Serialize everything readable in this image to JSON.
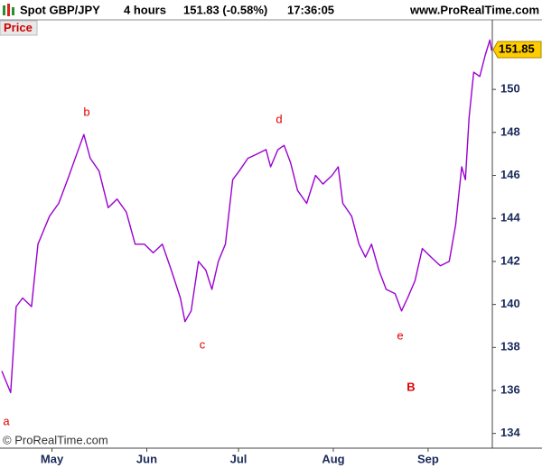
{
  "chart_data": {
    "type": "line",
    "header": {
      "symbol": "Spot GBP/JPY",
      "period": "4 hours",
      "quote": "151.83 (-0.58%)",
      "time": "17:36:05",
      "site": "www.ProRealTime.com"
    },
    "panel_label": "Price",
    "copyright": "© ProRealTime.com",
    "annotations": [
      "a",
      "b",
      "c",
      "d",
      "e",
      "B"
    ],
    "last_price": 151.85,
    "x": [
      0.6,
      3.5,
      5.3,
      7.4,
      10.3,
      12.4,
      16.2,
      19.2,
      22.1,
      25.1,
      27.4,
      29.5,
      32.4,
      35.4,
      38.3,
      41.3,
      44.2,
      47.2,
      50.1,
      53.1,
      56,
      59,
      60.5,
      62.5,
      64.9,
      67.3,
      69.3,
      71.4,
      73.7,
      76.1,
      78.2,
      81.1,
      84.1,
      87,
      88.5,
      90.9,
      92.9,
      95,
      97.3,
      100.3,
      103.2,
      105.6,
      108.6,
      110.6,
      112.1,
      115,
      117.4,
      119.5,
      121.5,
      123.9,
      126.3,
      129.2,
      131.3,
      133.3,
      135.7,
      138.1,
      141,
      144,
      146.9,
      149,
      151,
      152.2,
      153.4,
      154.9,
      156.9,
      158.7,
      160.2,
      160.8
    ],
    "series": [
      {
        "name": "Price",
        "color": "#9a00d0",
        "values": [
          136.9,
          135.9,
          139.9,
          140.3,
          139.9,
          142.8,
          144.1,
          144.7,
          145.8,
          147.0,
          147.9,
          146.8,
          146.2,
          144.5,
          144.9,
          144.3,
          142.8,
          142.8,
          142.4,
          142.8,
          141.6,
          140.3,
          139.2,
          139.7,
          142.0,
          141.6,
          140.7,
          142.0,
          142.8,
          145.8,
          146.2,
          146.8,
          147.0,
          147.2,
          146.4,
          147.2,
          147.4,
          146.6,
          145.3,
          144.7,
          146.0,
          145.6,
          146.0,
          146.4,
          144.7,
          144.1,
          142.8,
          142.2,
          142.8,
          141.6,
          140.7,
          140.5,
          139.7,
          140.3,
          141.1,
          142.6,
          142.2,
          141.8,
          142.0,
          143.7,
          146.4,
          145.8,
          148.7,
          150.8,
          150.6,
          151.6,
          152.3,
          151.8
        ]
      }
    ],
    "xlim": [
      0,
      161
    ],
    "xticks": [
      {
        "value": 17,
        "label": "May"
      },
      {
        "value": 48,
        "label": "Jun"
      },
      {
        "value": 78,
        "label": "Jul"
      },
      {
        "value": 109,
        "label": "Aug"
      },
      {
        "value": 140,
        "label": "Sep"
      }
    ],
    "ylim": [
      133.4,
      152.9
    ],
    "yticks": [
      134,
      136,
      138,
      140,
      142,
      144,
      146,
      148,
      150
    ],
    "grid": false
  }
}
